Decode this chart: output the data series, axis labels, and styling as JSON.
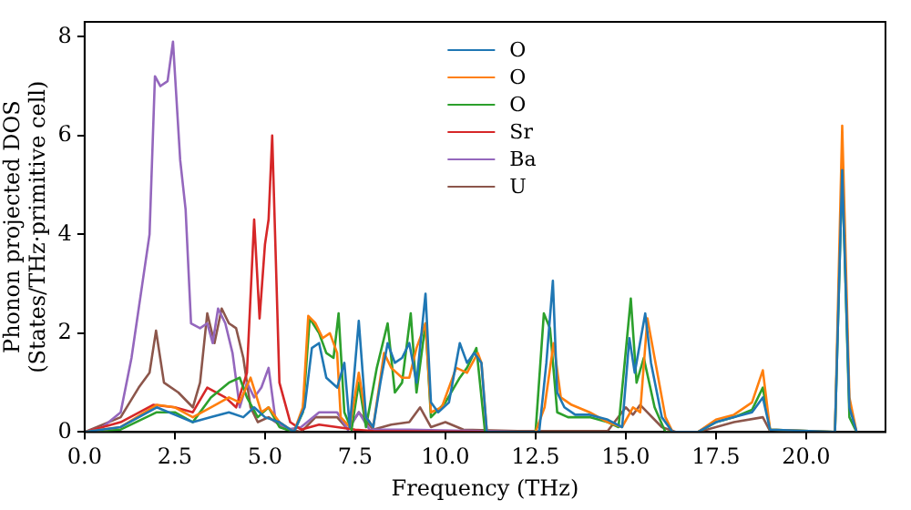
{
  "chart_data": {
    "type": "line",
    "xlabel": "Frequency (THz)",
    "ylabel": "Phonon projected DOS\n(States/THz·primitive cell)",
    "xlim": [
      0,
      22.2
    ],
    "ylim": [
      0,
      8.3
    ],
    "xticks": [
      {
        "value": 0,
        "label": "0.0"
      },
      {
        "value": 2.5,
        "label": "2.5"
      },
      {
        "value": 5,
        "label": "5.0"
      },
      {
        "value": 7.5,
        "label": "7.5"
      },
      {
        "value": 10,
        "label": "10.0"
      },
      {
        "value": 12.5,
        "label": "12.5"
      },
      {
        "value": 15,
        "label": "15.0"
      },
      {
        "value": 17.5,
        "label": "17.5"
      },
      {
        "value": 20,
        "label": "20.0"
      }
    ],
    "yticks": [
      0,
      2,
      4,
      6,
      8
    ],
    "grid": false,
    "legend": "top",
    "marker": "none",
    "line_style": "solid",
    "series": [
      {
        "name": "O",
        "color": "#1f77b4",
        "x": [
          0,
          1,
          1.5,
          2,
          2.5,
          3,
          3.5,
          4,
          4.4,
          4.7,
          5,
          5.4,
          5.8,
          6.1,
          6.3,
          6.5,
          6.7,
          7,
          7.2,
          7.35,
          7.6,
          7.8,
          8,
          8.2,
          8.4,
          8.6,
          8.8,
          9,
          9.2,
          9.45,
          9.6,
          9.8,
          10.1,
          10.4,
          10.6,
          10.8,
          11,
          11.15,
          12.6,
          12.8,
          12.98,
          13.1,
          13.3,
          13.6,
          14,
          14.5,
          14.9,
          15.1,
          15.25,
          15.54,
          15.7,
          16,
          16.3,
          17,
          17.5,
          18,
          18.5,
          18.8,
          19,
          20.8,
          21,
          21.2,
          21.4
        ],
        "values": [
          0,
          0.1,
          0.3,
          0.5,
          0.35,
          0.2,
          0.3,
          0.4,
          0.3,
          0.5,
          0.3,
          0.2,
          0,
          0.5,
          1.7,
          1.8,
          1.1,
          0.9,
          1.4,
          0.1,
          2.25,
          0.3,
          0.1,
          1,
          1.8,
          1.4,
          1.5,
          1.8,
          1,
          2.8,
          0.6,
          0.4,
          0.6,
          1.8,
          1.4,
          1.6,
          1.4,
          0,
          0,
          1.4,
          3.06,
          0.8,
          0.5,
          0.35,
          0.35,
          0.25,
          0.1,
          1.9,
          1.2,
          2.4,
          1.4,
          0.3,
          0,
          0,
          0.2,
          0.3,
          0.4,
          0.7,
          0.05,
          0,
          5.3,
          0.5,
          0
        ]
      },
      {
        "name": "O",
        "color": "#ff7f0e",
        "x": [
          0,
          1,
          2,
          2.5,
          3,
          3.5,
          4,
          4.3,
          4.6,
          4.9,
          5.1,
          5.4,
          5.8,
          6.05,
          6.2,
          6.4,
          6.6,
          6.8,
          7,
          7.1,
          7.35,
          7.6,
          7.8,
          8,
          8.3,
          8.5,
          8.8,
          9,
          9.2,
          9.45,
          9.6,
          9.9,
          10.3,
          10.6,
          10.9,
          11,
          11.15,
          12.5,
          12.75,
          13,
          13.2,
          13.5,
          14,
          14.5,
          14.9,
          15.2,
          15.4,
          15.6,
          15.8,
          16.1,
          16.3,
          17,
          17.5,
          18,
          18.5,
          18.8,
          19,
          20.8,
          21,
          21.2,
          21.4
        ],
        "values": [
          0,
          0.1,
          0.55,
          0.5,
          0.3,
          0.5,
          0.7,
          0.6,
          1.1,
          0.4,
          0.5,
          0.2,
          0,
          0.5,
          2.35,
          2.2,
          1.9,
          2,
          1.6,
          0.3,
          0.1,
          1.2,
          0.3,
          0.1,
          1.6,
          1.3,
          1.1,
          1.1,
          1.7,
          2.2,
          0.4,
          0.5,
          1.3,
          1.2,
          1.6,
          1.4,
          0,
          0,
          0.5,
          1.8,
          0.7,
          0.55,
          0.4,
          0.2,
          0.1,
          0.5,
          0.4,
          2.3,
          1.5,
          0.3,
          0,
          0,
          0.25,
          0.35,
          0.6,
          1.25,
          0.05,
          0,
          6.2,
          0.7,
          0
        ]
      },
      {
        "name": "O",
        "color": "#2ca02c",
        "x": [
          0,
          1,
          2,
          2.5,
          3,
          3.5,
          4,
          4.3,
          4.5,
          4.8,
          5.1,
          5.4,
          5.8,
          6.05,
          6.24,
          6.5,
          6.7,
          6.9,
          7.04,
          7.2,
          7.4,
          7.6,
          7.8,
          8.1,
          8.4,
          8.6,
          8.8,
          9.04,
          9.2,
          9.45,
          9.6,
          10,
          10.4,
          10.6,
          10.86,
          11.1,
          12.5,
          12.73,
          12.9,
          13.1,
          13.4,
          14,
          14.5,
          14.8,
          15.14,
          15.3,
          15.5,
          15.8,
          16.1,
          17,
          17.5,
          18,
          18.5,
          18.8,
          19,
          20.8,
          21,
          21.2,
          21.4
        ],
        "values": [
          0,
          0.05,
          0.4,
          0.4,
          0.2,
          0.7,
          1,
          1.1,
          0.7,
          0.3,
          0.5,
          0.1,
          0,
          0.4,
          2.3,
          2,
          1.6,
          1.5,
          2.4,
          0.4,
          0.05,
          1,
          0.1,
          1.3,
          2.2,
          0.8,
          1,
          2.4,
          0.8,
          2.2,
          0.3,
          0.6,
          1.1,
          1.3,
          1.7,
          0,
          0,
          2.4,
          2.1,
          0.4,
          0.3,
          0.3,
          0.2,
          0.1,
          2.7,
          1,
          1.5,
          0.5,
          0,
          0,
          0.2,
          0.3,
          0.45,
          0.9,
          0.05,
          0,
          5.3,
          0.3,
          0
        ]
      },
      {
        "name": "Sr",
        "color": "#d62728",
        "x": [
          0,
          1,
          1.9,
          2.5,
          3,
          3.4,
          3.9,
          4.2,
          4.5,
          4.7,
          4.85,
          5,
          5.1,
          5.2,
          5.4,
          5.7,
          6,
          6.5,
          7,
          7.5,
          8,
          12
        ],
        "values": [
          0,
          0.2,
          0.55,
          0.5,
          0.4,
          0.9,
          0.7,
          0.5,
          1.2,
          4.3,
          2.3,
          3.8,
          4.3,
          6,
          1,
          0.2,
          0.05,
          0.15,
          0.1,
          0.05,
          0.02,
          0
        ]
      },
      {
        "name": "Ba",
        "color": "#9467bd",
        "x": [
          0,
          0.5,
          1,
          1.3,
          1.6,
          1.8,
          1.95,
          2.1,
          2.3,
          2.45,
          2.65,
          2.8,
          2.95,
          3.2,
          3.4,
          3.55,
          3.7,
          3.9,
          4.1,
          4.3,
          4.5,
          4.7,
          4.9,
          5.1,
          5.3,
          5.6,
          6,
          6.5,
          7,
          7.3,
          7.6,
          7.9,
          9,
          11,
          12
        ],
        "values": [
          0,
          0.1,
          0.4,
          1.5,
          3,
          4,
          7.2,
          7,
          7.1,
          7.9,
          5.5,
          4.5,
          2.2,
          2.1,
          2.2,
          1.8,
          2.5,
          2.2,
          1.6,
          0.5,
          1,
          0.7,
          0.9,
          1.3,
          0.2,
          0.05,
          0.1,
          0.4,
          0.4,
          0.05,
          0.4,
          0.05,
          0.05,
          0.02,
          0
        ]
      },
      {
        "name": "U",
        "color": "#8c564b",
        "x": [
          0,
          1,
          1.5,
          1.8,
          1.98,
          2.2,
          2.6,
          3,
          3.2,
          3.4,
          3.6,
          3.8,
          4,
          4.2,
          4.4,
          4.6,
          4.8,
          5.1,
          5.5,
          6,
          6.4,
          7,
          7.3,
          7.6,
          8,
          8.5,
          9,
          9.3,
          9.6,
          10,
          10.5,
          12,
          14.5,
          15,
          15.2,
          15.4,
          16,
          16.4,
          17,
          18,
          18.8,
          19
        ],
        "values": [
          0,
          0.3,
          0.9,
          1.2,
          2.05,
          1,
          0.8,
          0.5,
          1,
          2.4,
          1.8,
          2.5,
          2.2,
          2.1,
          1.5,
          0.5,
          0.2,
          0.3,
          0.1,
          0,
          0.3,
          0.3,
          0.05,
          0.4,
          0.05,
          0.15,
          0.2,
          0.5,
          0.1,
          0.2,
          0.05,
          0.02,
          0.02,
          0.5,
          0.35,
          0.55,
          0.1,
          0,
          0,
          0.2,
          0.3,
          0.02
        ]
      }
    ]
  }
}
